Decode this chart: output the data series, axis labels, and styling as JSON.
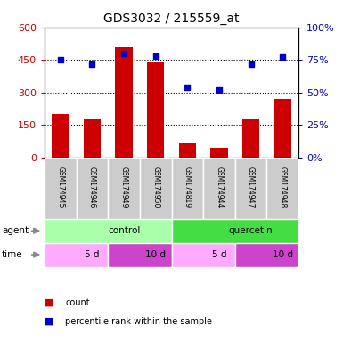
{
  "title": "GDS3032 / 215559_at",
  "samples": [
    "GSM174945",
    "GSM174946",
    "GSM174949",
    "GSM174950",
    "GSM174819",
    "GSM174944",
    "GSM174947",
    "GSM174948"
  ],
  "counts": [
    200,
    175,
    510,
    440,
    65,
    45,
    175,
    270
  ],
  "percentiles": [
    75,
    72,
    80,
    78,
    54,
    52,
    72,
    77
  ],
  "ylim_left": [
    0,
    600
  ],
  "ylim_right": [
    0,
    100
  ],
  "yticks_left": [
    0,
    150,
    300,
    450,
    600
  ],
  "yticks_right": [
    0,
    25,
    50,
    75,
    100
  ],
  "bar_color": "#cc0000",
  "dot_color": "#0000cc",
  "agent_groups": [
    {
      "label": "control",
      "start": 0,
      "end": 4,
      "color": "#aaffaa"
    },
    {
      "label": "quercetin",
      "start": 4,
      "end": 8,
      "color": "#44dd44"
    }
  ],
  "time_groups": [
    {
      "label": "5 d",
      "start": 0,
      "end": 2,
      "color": "#ffaaff"
    },
    {
      "label": "10 d",
      "start": 2,
      "end": 4,
      "color": "#cc44cc"
    },
    {
      "label": "5 d",
      "start": 4,
      "end": 6,
      "color": "#ffaaff"
    },
    {
      "label": "10 d",
      "start": 6,
      "end": 8,
      "color": "#cc44cc"
    }
  ],
  "legend_count_color": "#cc0000",
  "legend_dot_color": "#0000cc",
  "grid_color": "#000000",
  "tick_label_color_left": "#cc0000",
  "tick_label_color_right": "#0000cc",
  "sample_box_color": "#cccccc",
  "figsize": [
    3.85,
    3.84
  ],
  "dpi": 100
}
